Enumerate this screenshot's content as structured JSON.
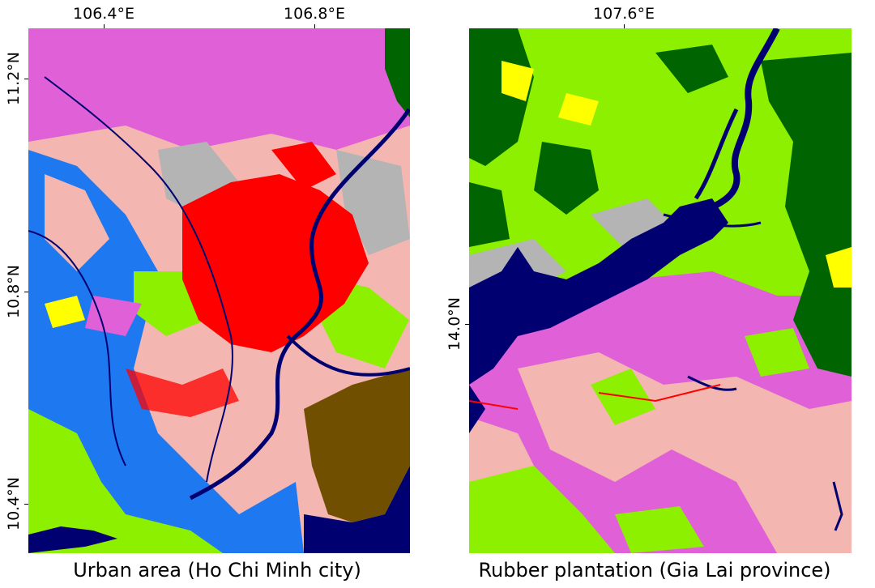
{
  "maps": [
    {
      "caption": "Urban area (Ho Chi Minh city)",
      "lon_ticks": [
        "106.4°E",
        "106.8°E"
      ],
      "lat_ticks": [
        "11.2°N",
        "10.8°N",
        "10.4°N"
      ]
    },
    {
      "caption": "Rubber plantation (Gia Lai province)",
      "lon_ticks": [
        "107.6°E"
      ],
      "lat_ticks": [
        "14.0°N"
      ]
    }
  ],
  "colors": {
    "urban": "#ff0000",
    "cropland_pink": "#e060d8",
    "light_pink": "#f4b6b0",
    "bright_green": "#8cf000",
    "forest": "#006400",
    "water_blue": "#1e78f0",
    "navy_water": "#000070",
    "mangrove": "#705000",
    "yellow": "#ffff00",
    "gray": "#b4b4b4"
  }
}
